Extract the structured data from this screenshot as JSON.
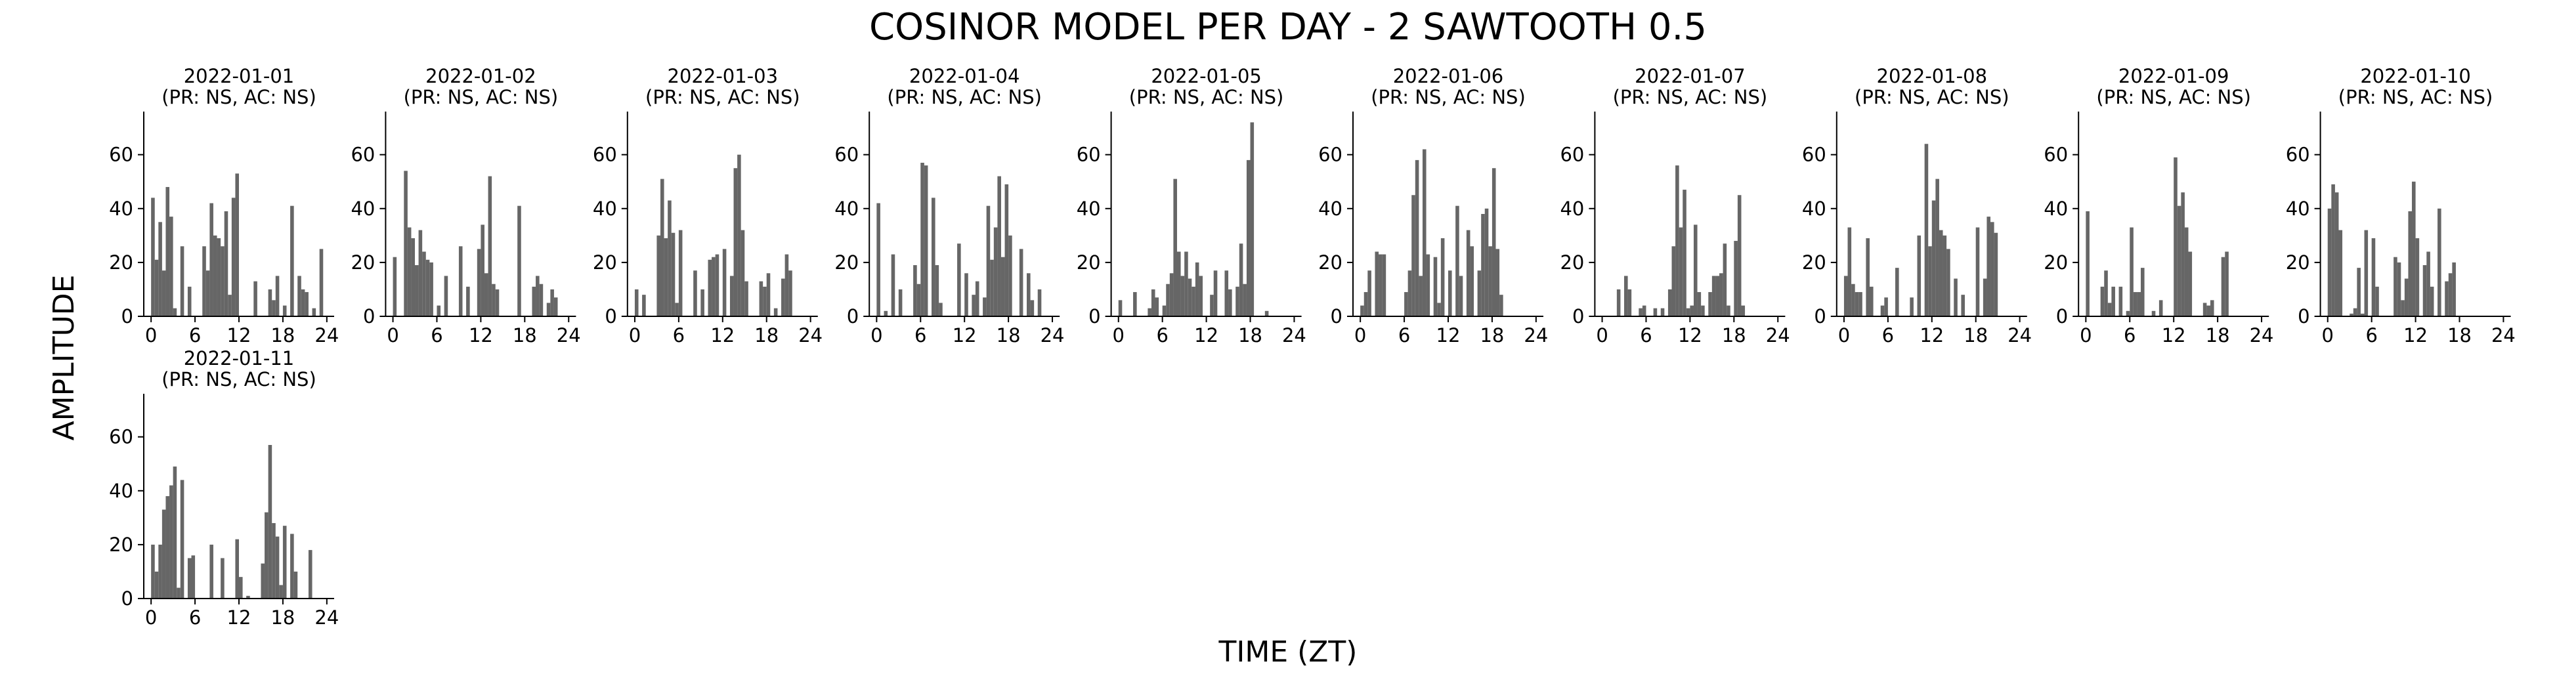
{
  "title": "COSINOR MODEL PER DAY - 2 SAWTOOTH 0.5",
  "xlabel": "TIME (ZT)",
  "ylabel": "AMPLITUDE",
  "colors": {
    "bar": "#666666",
    "axis": "#000000",
    "text": "#000000"
  },
  "chart_data": {
    "type": "bar",
    "grid": false,
    "xlim": [
      -1,
      25
    ],
    "ylim": [
      0,
      76
    ],
    "xticks": [
      0,
      6,
      12,
      18,
      24
    ],
    "yticks": [
      0,
      20,
      40,
      60
    ],
    "bin_width": 0.5,
    "panels": [
      {
        "date": "2022-01-01",
        "subtitle": "(PR: NS, AC: NS)",
        "points": [
          [
            0,
            44
          ],
          [
            0.5,
            21
          ],
          [
            1,
            35
          ],
          [
            1.5,
            17
          ],
          [
            2,
            48
          ],
          [
            2.5,
            37
          ],
          [
            3,
            3
          ],
          [
            4,
            26
          ],
          [
            5,
            11
          ],
          [
            7,
            26
          ],
          [
            7.5,
            17
          ],
          [
            8,
            42
          ],
          [
            8.5,
            30
          ],
          [
            9,
            29
          ],
          [
            9.5,
            26
          ],
          [
            10,
            39
          ],
          [
            10.5,
            8
          ],
          [
            11,
            44
          ],
          [
            11.5,
            53
          ],
          [
            14,
            13
          ],
          [
            16,
            10
          ],
          [
            16.5,
            6
          ],
          [
            17,
            15
          ],
          [
            18,
            4
          ],
          [
            19,
            41
          ],
          [
            20,
            15
          ],
          [
            20.5,
            10
          ],
          [
            21,
            9
          ],
          [
            22,
            3
          ],
          [
            23,
            25
          ]
        ]
      },
      {
        "date": "2022-01-02",
        "subtitle": "(PR: NS, AC: NS)",
        "points": [
          [
            0,
            22
          ],
          [
            1.5,
            54
          ],
          [
            2,
            33
          ],
          [
            2.5,
            29
          ],
          [
            3,
            19
          ],
          [
            3.5,
            32
          ],
          [
            4,
            24
          ],
          [
            4.5,
            21
          ],
          [
            5,
            20
          ],
          [
            6,
            4
          ],
          [
            7,
            15
          ],
          [
            9,
            26
          ],
          [
            10,
            11
          ],
          [
            11.5,
            25
          ],
          [
            12,
            34
          ],
          [
            12.5,
            16
          ],
          [
            13,
            52
          ],
          [
            13.5,
            12
          ],
          [
            14,
            10
          ],
          [
            17,
            41
          ],
          [
            19,
            11
          ],
          [
            19.5,
            15
          ],
          [
            20,
            12
          ],
          [
            21,
            5
          ],
          [
            21.5,
            10
          ],
          [
            22,
            7
          ]
        ]
      },
      {
        "date": "2022-01-03",
        "subtitle": "(PR: NS, AC: NS)",
        "points": [
          [
            0,
            10
          ],
          [
            1,
            8
          ],
          [
            3,
            30
          ],
          [
            3.5,
            51
          ],
          [
            4,
            29
          ],
          [
            4.5,
            43
          ],
          [
            5,
            31
          ],
          [
            5.5,
            5
          ],
          [
            6,
            32
          ],
          [
            8,
            17
          ],
          [
            9,
            10
          ],
          [
            10,
            21
          ],
          [
            10.5,
            22
          ],
          [
            11,
            23
          ],
          [
            12,
            25
          ],
          [
            13,
            15
          ],
          [
            13.5,
            55
          ],
          [
            14,
            60
          ],
          [
            14.5,
            32
          ],
          [
            15,
            13
          ],
          [
            17,
            13
          ],
          [
            17.5,
            11
          ],
          [
            18,
            16
          ],
          [
            19,
            3
          ],
          [
            20,
            14
          ],
          [
            20.5,
            23
          ],
          [
            21,
            17
          ]
        ]
      },
      {
        "date": "2022-01-04",
        "subtitle": "(PR: NS, AC: NS)",
        "points": [
          [
            0,
            42
          ],
          [
            1,
            2
          ],
          [
            2,
            23
          ],
          [
            3,
            10
          ],
          [
            5,
            19
          ],
          [
            5.5,
            12
          ],
          [
            6,
            57
          ],
          [
            6.5,
            56
          ],
          [
            7.5,
            44
          ],
          [
            8,
            19
          ],
          [
            8.5,
            5
          ],
          [
            11,
            27
          ],
          [
            12,
            16
          ],
          [
            13,
            8
          ],
          [
            13.5,
            13
          ],
          [
            14.5,
            7
          ],
          [
            15,
            41
          ],
          [
            15.5,
            21
          ],
          [
            16,
            33
          ],
          [
            16.5,
            52
          ],
          [
            17,
            22
          ],
          [
            17.5,
            49
          ],
          [
            18,
            30
          ],
          [
            19.5,
            25
          ],
          [
            20.5,
            16
          ],
          [
            21,
            6
          ],
          [
            22,
            10
          ]
        ]
      },
      {
        "date": "2022-01-05",
        "subtitle": "(PR: NS, AC: NS)",
        "points": [
          [
            0,
            6
          ],
          [
            2,
            9
          ],
          [
            4,
            3
          ],
          [
            4.5,
            10
          ],
          [
            5,
            7
          ],
          [
            6,
            4
          ],
          [
            6.5,
            12
          ],
          [
            7,
            16
          ],
          [
            7.5,
            51
          ],
          [
            8,
            24
          ],
          [
            8.5,
            15
          ],
          [
            9,
            24
          ],
          [
            9.5,
            14
          ],
          [
            10,
            11
          ],
          [
            10.5,
            20
          ],
          [
            11,
            15
          ],
          [
            12.5,
            8
          ],
          [
            13,
            17
          ],
          [
            14.5,
            17
          ],
          [
            15,
            10
          ],
          [
            16,
            11
          ],
          [
            16.5,
            27
          ],
          [
            17,
            12
          ],
          [
            17.5,
            58
          ],
          [
            18,
            72
          ],
          [
            20,
            2
          ]
        ]
      },
      {
        "date": "2022-01-06",
        "subtitle": "(PR: NS, AC: NS)",
        "points": [
          [
            0,
            4
          ],
          [
            0.5,
            9
          ],
          [
            1,
            17
          ],
          [
            2,
            24
          ],
          [
            2.5,
            23
          ],
          [
            3,
            23
          ],
          [
            6,
            9
          ],
          [
            6.5,
            17
          ],
          [
            7,
            45
          ],
          [
            7.5,
            58
          ],
          [
            8,
            15
          ],
          [
            8.5,
            62
          ],
          [
            9,
            23
          ],
          [
            10,
            22
          ],
          [
            10.5,
            5
          ],
          [
            11,
            29
          ],
          [
            12,
            17
          ],
          [
            13,
            41
          ],
          [
            13.5,
            15
          ],
          [
            14.5,
            32
          ],
          [
            15,
            26
          ],
          [
            16,
            17
          ],
          [
            16.5,
            38
          ],
          [
            17,
            40
          ],
          [
            17.5,
            26
          ],
          [
            18,
            55
          ],
          [
            18.5,
            25
          ],
          [
            19,
            8
          ]
        ]
      },
      {
        "date": "2022-01-07",
        "subtitle": "(PR: NS, AC: NS)",
        "points": [
          [
            2,
            10
          ],
          [
            3,
            15
          ],
          [
            3.5,
            10
          ],
          [
            5,
            3
          ],
          [
            5.5,
            4
          ],
          [
            7,
            3
          ],
          [
            8,
            3
          ],
          [
            9,
            10
          ],
          [
            9.5,
            26
          ],
          [
            10,
            56
          ],
          [
            10.5,
            33
          ],
          [
            11,
            47
          ],
          [
            11.5,
            3
          ],
          [
            12,
            4
          ],
          [
            12.5,
            34
          ],
          [
            13,
            9
          ],
          [
            13.5,
            4
          ],
          [
            14.5,
            9
          ],
          [
            15,
            15
          ],
          [
            15.5,
            15
          ],
          [
            16,
            16
          ],
          [
            16.5,
            27
          ],
          [
            17,
            4
          ],
          [
            18,
            28
          ],
          [
            18.5,
            45
          ],
          [
            19,
            4
          ]
        ]
      },
      {
        "date": "2022-01-08",
        "subtitle": "(PR: NS, AC: NS)",
        "points": [
          [
            0,
            15
          ],
          [
            0.5,
            33
          ],
          [
            1,
            12
          ],
          [
            1.5,
            9
          ],
          [
            2,
            9
          ],
          [
            3,
            29
          ],
          [
            3.5,
            11
          ],
          [
            5,
            4
          ],
          [
            5.5,
            7
          ],
          [
            7,
            18
          ],
          [
            9,
            7
          ],
          [
            10,
            30
          ],
          [
            11,
            64
          ],
          [
            11.5,
            26
          ],
          [
            12,
            43
          ],
          [
            12.5,
            51
          ],
          [
            13,
            32
          ],
          [
            13.5,
            30
          ],
          [
            14,
            25
          ],
          [
            15,
            14
          ],
          [
            16,
            8
          ],
          [
            18,
            33
          ],
          [
            19,
            14
          ],
          [
            19.5,
            37
          ],
          [
            20,
            35
          ],
          [
            20.5,
            31
          ]
        ]
      },
      {
        "date": "2022-01-09",
        "subtitle": "(PR: NS, AC: NS)",
        "points": [
          [
            0,
            39
          ],
          [
            2,
            11
          ],
          [
            2.5,
            17
          ],
          [
            3,
            5
          ],
          [
            3.5,
            11
          ],
          [
            4.5,
            11
          ],
          [
            5.5,
            2
          ],
          [
            6,
            33
          ],
          [
            6.5,
            9
          ],
          [
            7,
            9
          ],
          [
            7.5,
            18
          ],
          [
            9,
            2
          ],
          [
            10,
            6
          ],
          [
            12,
            59
          ],
          [
            12.5,
            41
          ],
          [
            13,
            46
          ],
          [
            13.5,
            33
          ],
          [
            14,
            24
          ],
          [
            16,
            5
          ],
          [
            16.5,
            4
          ],
          [
            17,
            6
          ],
          [
            18.5,
            22
          ],
          [
            19,
            24
          ]
        ]
      },
      {
        "date": "2022-01-10",
        "subtitle": "(PR: NS, AC: NS)",
        "points": [
          [
            0,
            40
          ],
          [
            0.5,
            49
          ],
          [
            1,
            46
          ],
          [
            1.5,
            32
          ],
          [
            3,
            1
          ],
          [
            3.5,
            3
          ],
          [
            4,
            18
          ],
          [
            4.5,
            1
          ],
          [
            5,
            32
          ],
          [
            6,
            29
          ],
          [
            6.5,
            11
          ],
          [
            9,
            22
          ],
          [
            9.5,
            20
          ],
          [
            10,
            6
          ],
          [
            10.5,
            14
          ],
          [
            11,
            39
          ],
          [
            11.5,
            50
          ],
          [
            12,
            29
          ],
          [
            13,
            19
          ],
          [
            13.5,
            24
          ],
          [
            14,
            11
          ],
          [
            15,
            40
          ],
          [
            16,
            13
          ],
          [
            16.5,
            16
          ],
          [
            17,
            20
          ]
        ]
      },
      {
        "date": "2022-01-11",
        "subtitle": "(PR: NS, AC: NS)",
        "points": [
          [
            0,
            20
          ],
          [
            0.5,
            10
          ],
          [
            1,
            20
          ],
          [
            1.5,
            33
          ],
          [
            2,
            38
          ],
          [
            2.5,
            42
          ],
          [
            3,
            49
          ],
          [
            3.5,
            4
          ],
          [
            4,
            44
          ],
          [
            5,
            15
          ],
          [
            5.5,
            16
          ],
          [
            8,
            20
          ],
          [
            9.5,
            15
          ],
          [
            11.5,
            22
          ],
          [
            12,
            8
          ],
          [
            13,
            1
          ],
          [
            15,
            13
          ],
          [
            15.5,
            32
          ],
          [
            16,
            57
          ],
          [
            16.5,
            28
          ],
          [
            17,
            23
          ],
          [
            17.5,
            5
          ],
          [
            18,
            27
          ],
          [
            19,
            24
          ],
          [
            19.5,
            10
          ],
          [
            21.5,
            18
          ]
        ]
      }
    ]
  }
}
